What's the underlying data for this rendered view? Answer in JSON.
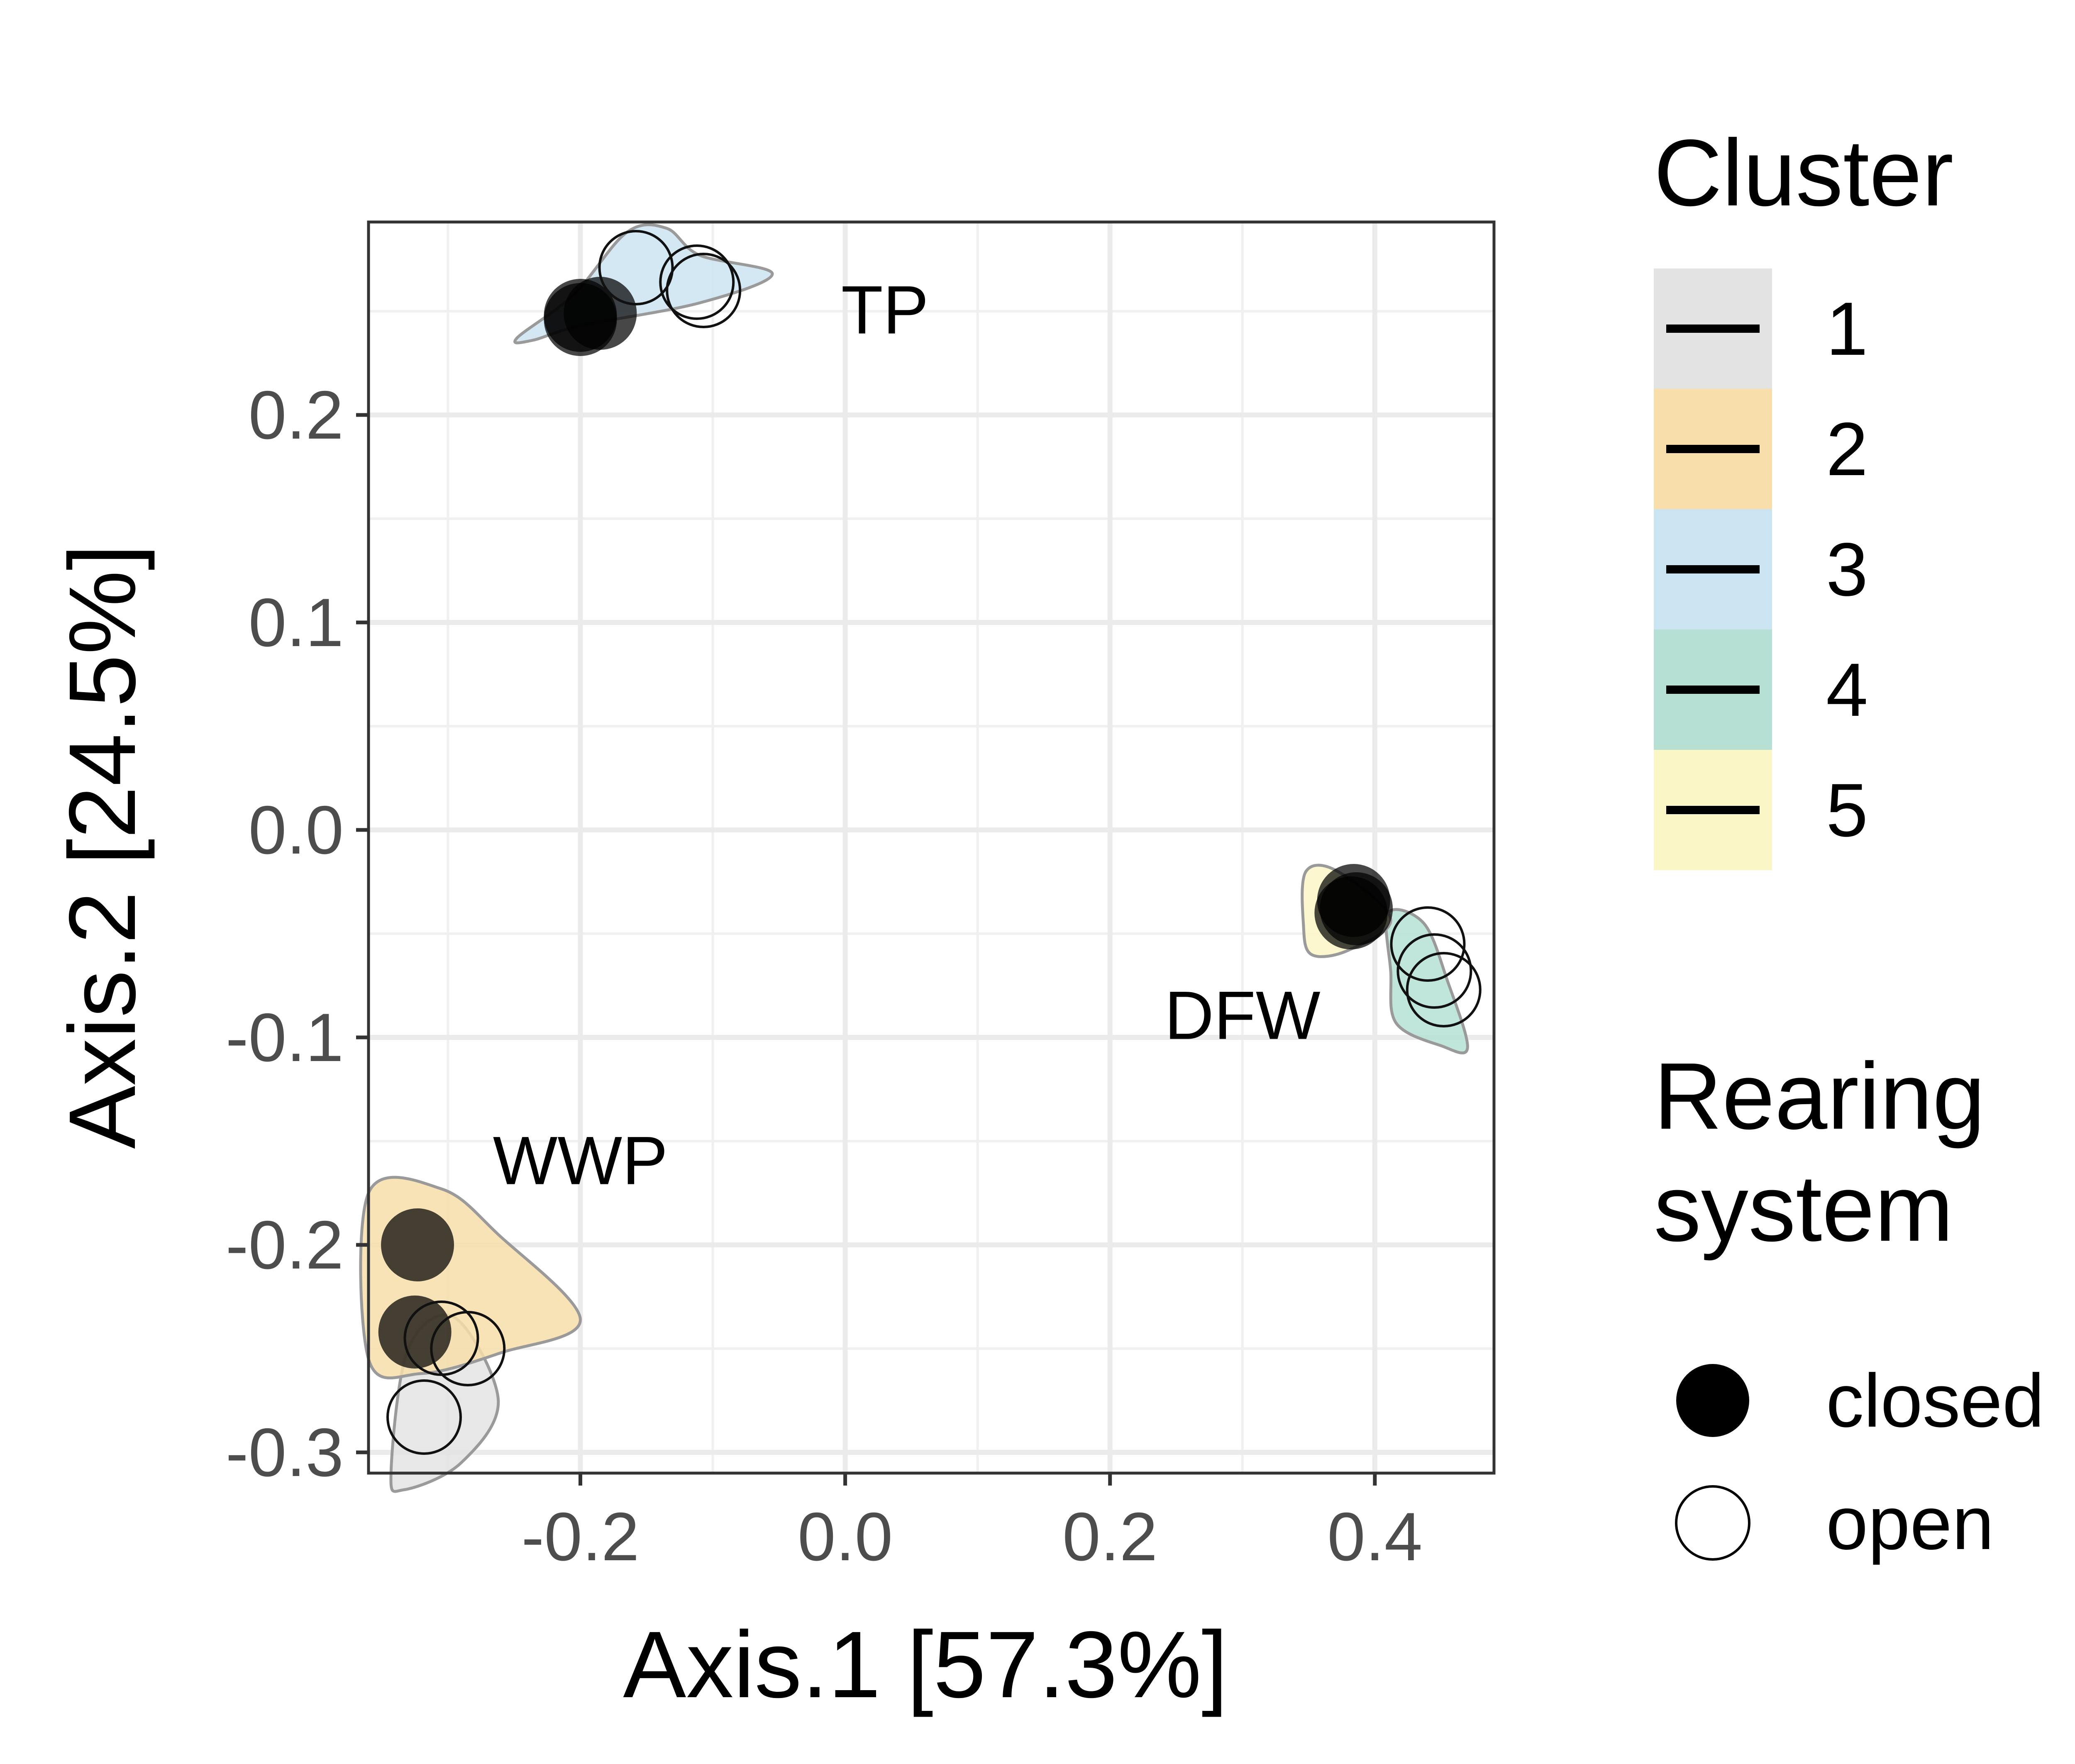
{
  "chart_data": {
    "type": "scatter",
    "xlabel": "Axis.1   [57.3%]",
    "ylabel": "Axis.2   [24.5%]",
    "xlim": [
      -0.36,
      0.49
    ],
    "ylim": [
      -0.31,
      0.293
    ],
    "x_ticks": [
      -0.2,
      0.0,
      0.2,
      0.4
    ],
    "y_ticks": [
      -0.3,
      -0.2,
      -0.1,
      0.0,
      0.1,
      0.2
    ],
    "x_tick_labels": [
      "-0.2",
      "0.0",
      "0.2",
      "0.4"
    ],
    "y_tick_labels": [
      "-0.3",
      "-0.2",
      "-0.1",
      "0.0",
      "0.1",
      "0.2"
    ],
    "grid": true,
    "annotations": [
      {
        "text": "TP",
        "x": 0.03,
        "y": 0.248
      },
      {
        "text": "DFW",
        "x": 0.3,
        "y": -0.092
      },
      {
        "text": "WWP",
        "x": -0.2,
        "y": -0.162
      }
    ],
    "clusters": [
      {
        "id": "1",
        "color": "#e3e3e3",
        "hull": [
          [
            -0.343,
            -0.31
          ],
          [
            -0.33,
            -0.25
          ],
          [
            -0.295,
            -0.235
          ],
          [
            -0.262,
            -0.275
          ],
          [
            -0.29,
            -0.305
          ],
          [
            -0.333,
            -0.318
          ]
        ]
      },
      {
        "id": "2",
        "color": "#f7deaa",
        "hull": [
          [
            -0.36,
            -0.175
          ],
          [
            -0.305,
            -0.173
          ],
          [
            -0.262,
            -0.195
          ],
          [
            -0.2,
            -0.236
          ],
          [
            -0.26,
            -0.252
          ],
          [
            -0.32,
            -0.262
          ],
          [
            -0.36,
            -0.255
          ]
        ]
      },
      {
        "id": "3",
        "color": "#cbe4f1",
        "hull": [
          [
            -0.248,
            0.237
          ],
          [
            -0.205,
            0.258
          ],
          [
            -0.165,
            0.288
          ],
          [
            -0.135,
            0.29
          ],
          [
            -0.11,
            0.277
          ],
          [
            -0.055,
            0.268
          ],
          [
            -0.11,
            0.254
          ],
          [
            -0.2,
            0.243
          ],
          [
            -0.236,
            0.236
          ]
        ]
      },
      {
        "id": "4",
        "color": "#b5e0d3",
        "hull": [
          [
            0.41,
            -0.04
          ],
          [
            0.437,
            -0.045
          ],
          [
            0.455,
            -0.073
          ],
          [
            0.47,
            -0.105
          ],
          [
            0.45,
            -0.104
          ],
          [
            0.416,
            -0.093
          ],
          [
            0.412,
            -0.068
          ]
        ]
      },
      {
        "id": "5",
        "color": "#fbf6c6",
        "hull": [
          [
            0.348,
            -0.02
          ],
          [
            0.372,
            -0.02
          ],
          [
            0.412,
            -0.043
          ],
          [
            0.38,
            -0.058
          ],
          [
            0.352,
            -0.06
          ],
          [
            0.346,
            -0.045
          ]
        ]
      }
    ],
    "points": [
      {
        "x": -0.158,
        "y": 0.271,
        "system": "open"
      },
      {
        "x": -0.112,
        "y": 0.264,
        "system": "open"
      },
      {
        "x": -0.107,
        "y": 0.26,
        "system": "open"
      },
      {
        "x": -0.2,
        "y": 0.248,
        "system": "closed"
      },
      {
        "x": -0.185,
        "y": 0.249,
        "system": "closed"
      },
      {
        "x": -0.2,
        "y": 0.246,
        "system": "closed"
      },
      {
        "x": 0.384,
        "y": -0.034,
        "system": "closed"
      },
      {
        "x": 0.386,
        "y": -0.038,
        "system": "closed"
      },
      {
        "x": 0.382,
        "y": -0.04,
        "system": "closed"
      },
      {
        "x": 0.44,
        "y": -0.055,
        "system": "open"
      },
      {
        "x": 0.445,
        "y": -0.068,
        "system": "open"
      },
      {
        "x": 0.452,
        "y": -0.077,
        "system": "open"
      },
      {
        "x": -0.323,
        "y": -0.2,
        "system": "closed"
      },
      {
        "x": -0.325,
        "y": -0.242,
        "system": "closed"
      },
      {
        "x": -0.305,
        "y": -0.245,
        "system": "open"
      },
      {
        "x": -0.285,
        "y": -0.25,
        "system": "open"
      },
      {
        "x": -0.318,
        "y": -0.283,
        "system": "open"
      }
    ],
    "legend": {
      "cluster": {
        "title": "Cluster",
        "entries": [
          {
            "label": "1",
            "color": "#e3e3e3"
          },
          {
            "label": "2",
            "color": "#f7deaa"
          },
          {
            "label": "3",
            "color": "#cbe4f1"
          },
          {
            "label": "4",
            "color": "#b5e0d3"
          },
          {
            "label": "5",
            "color": "#fbf6c6"
          }
        ]
      },
      "system": {
        "title_lines": [
          "Rearing",
          "system"
        ],
        "entries": [
          {
            "label": "closed",
            "shape": "filled-circle"
          },
          {
            "label": "open",
            "shape": "open-circle"
          }
        ]
      }
    }
  }
}
